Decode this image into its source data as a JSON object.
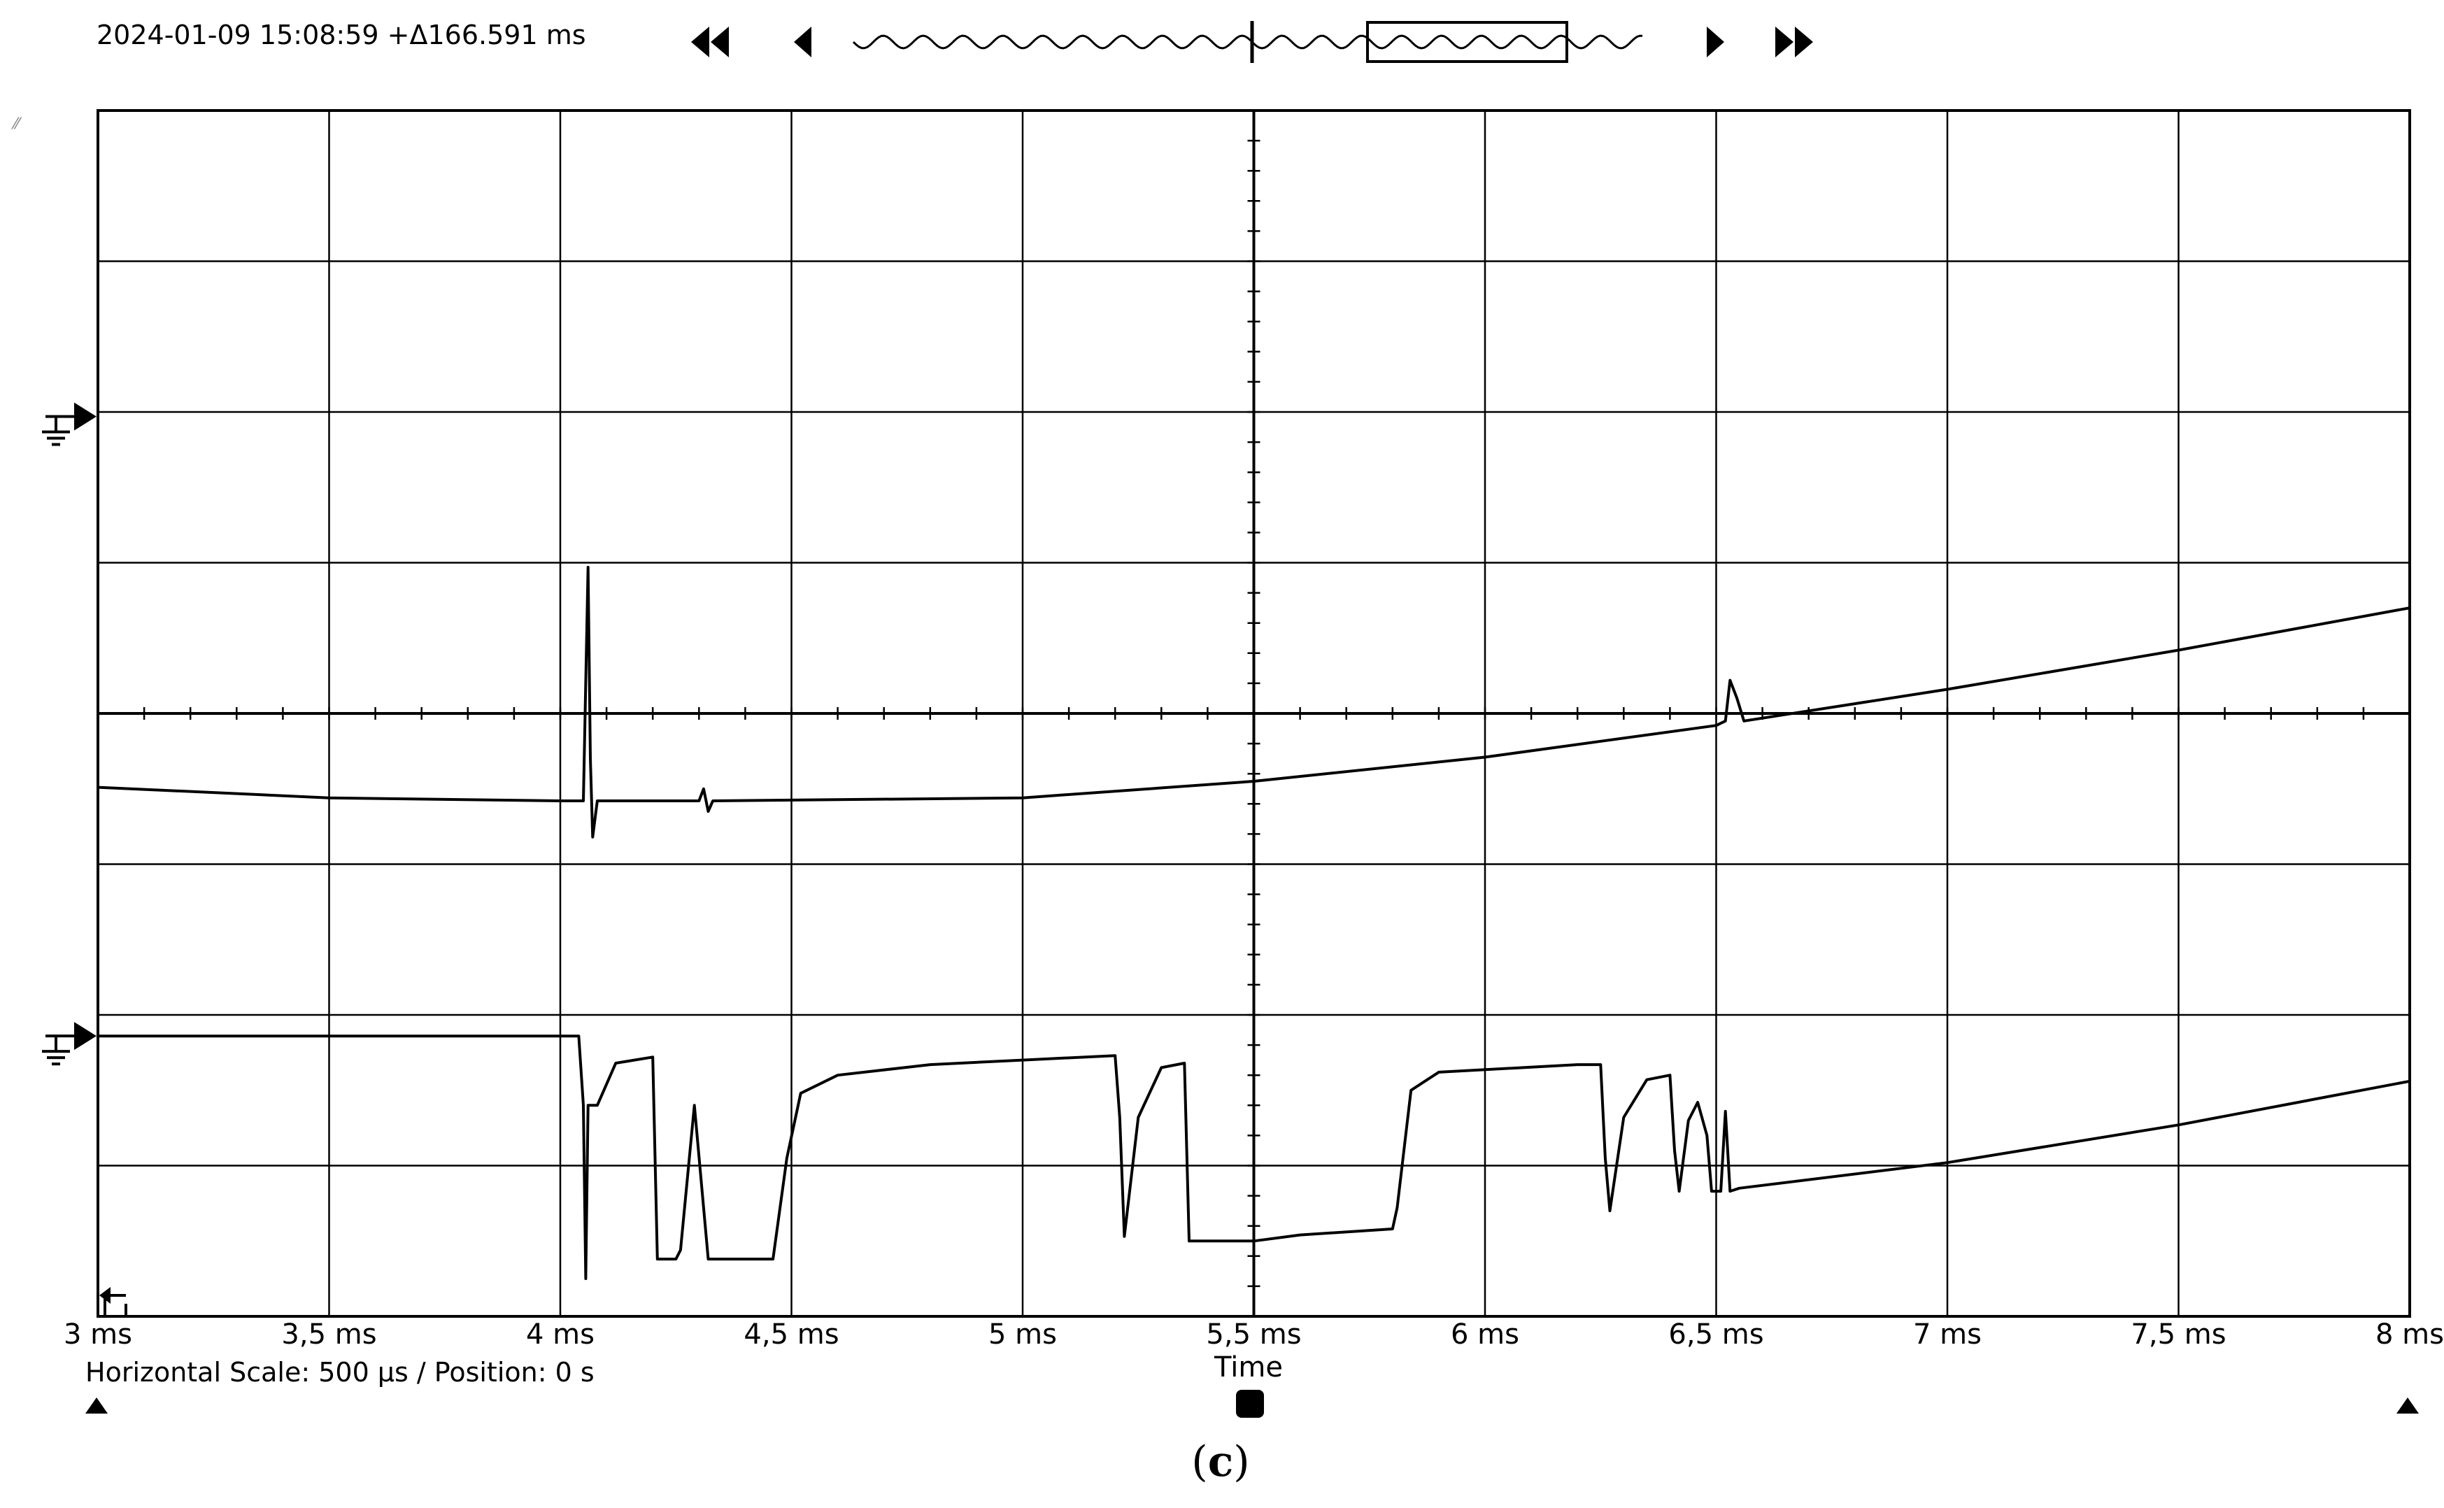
{
  "header": {
    "timestamp": "2024-01-09 15:08:59 +Δ166.591 ms",
    "buttons": [
      {
        "name": "rewind-to-start-button",
        "icon": "double-left-arrow-icon"
      },
      {
        "name": "step-back-button",
        "icon": "left-arrow-icon"
      },
      {
        "name": "step-forward-button",
        "icon": "right-arrow-icon"
      },
      {
        "name": "forward-to-end-button",
        "icon": "double-right-arrow-icon"
      }
    ],
    "overview_icon": "waveform-overview-icon"
  },
  "chart_data": {
    "type": "line",
    "title": "",
    "xlabel": "Time",
    "ylabel": "",
    "grid": true,
    "xlim": [
      3,
      8
    ],
    "x_unit": "ms",
    "x_tick_labels": [
      "3 ms",
      "3,5 ms",
      "4 ms",
      "4,5 ms",
      "5 ms",
      "5,5 ms",
      "6 ms",
      "6,5 ms",
      "7 ms",
      "7,5 ms",
      "8 ms"
    ],
    "ylim": [
      -4,
      4
    ],
    "y_unit": "divisions",
    "series": [
      {
        "channel": 1,
        "ground_ref_div": 1.97,
        "color": "#000000",
        "points": [
          [
            3.0,
            -0.49
          ],
          [
            3.5,
            -0.56
          ],
          [
            4.0,
            -0.58
          ],
          [
            4.05,
            -0.58
          ],
          [
            4.06,
            0.97
          ],
          [
            4.065,
            -0.3
          ],
          [
            4.07,
            -0.82
          ],
          [
            4.08,
            -0.58
          ],
          [
            4.3,
            -0.58
          ],
          [
            4.31,
            -0.5
          ],
          [
            4.32,
            -0.65
          ],
          [
            4.33,
            -0.58
          ],
          [
            5.0,
            -0.56
          ],
          [
            5.5,
            -0.45
          ],
          [
            6.0,
            -0.29
          ],
          [
            6.5,
            -0.08
          ],
          [
            6.52,
            -0.05
          ],
          [
            6.53,
            0.22
          ],
          [
            6.545,
            0.1
          ],
          [
            6.56,
            -0.05
          ],
          [
            7.0,
            0.16
          ],
          [
            7.5,
            0.42
          ],
          [
            8.0,
            0.7
          ]
        ]
      },
      {
        "channel": 2,
        "ground_ref_div": -2.14,
        "color": "#000000",
        "points": [
          [
            3.0,
            -2.14
          ],
          [
            3.5,
            -2.14
          ],
          [
            4.04,
            -2.14
          ],
          [
            4.05,
            -2.6
          ],
          [
            4.055,
            -3.75
          ],
          [
            4.06,
            -2.6
          ],
          [
            4.08,
            -2.6
          ],
          [
            4.12,
            -2.32
          ],
          [
            4.2,
            -2.28
          ],
          [
            4.21,
            -3.62
          ],
          [
            4.25,
            -3.62
          ],
          [
            4.26,
            -3.56
          ],
          [
            4.29,
            -2.6
          ],
          [
            4.32,
            -3.62
          ],
          [
            4.46,
            -3.62
          ],
          [
            4.49,
            -2.95
          ],
          [
            4.52,
            -2.52
          ],
          [
            4.6,
            -2.4
          ],
          [
            4.8,
            -2.33
          ],
          [
            5.0,
            -2.3
          ],
          [
            5.2,
            -2.27
          ],
          [
            5.21,
            -2.68
          ],
          [
            5.22,
            -3.47
          ],
          [
            5.25,
            -2.68
          ],
          [
            5.3,
            -2.35
          ],
          [
            5.35,
            -2.32
          ],
          [
            5.36,
            -3.5
          ],
          [
            5.5,
            -3.5
          ],
          [
            5.6,
            -3.46
          ],
          [
            5.8,
            -3.42
          ],
          [
            5.81,
            -3.28
          ],
          [
            5.84,
            -2.5
          ],
          [
            5.9,
            -2.38
          ],
          [
            6.2,
            -2.33
          ],
          [
            6.25,
            -2.33
          ],
          [
            6.26,
            -2.95
          ],
          [
            6.27,
            -3.3
          ],
          [
            6.3,
            -2.68
          ],
          [
            6.35,
            -2.43
          ],
          [
            6.4,
            -2.4
          ],
          [
            6.41,
            -2.9
          ],
          [
            6.42,
            -3.17
          ],
          [
            6.44,
            -2.7
          ],
          [
            6.46,
            -2.58
          ],
          [
            6.48,
            -2.8
          ],
          [
            6.49,
            -3.17
          ],
          [
            6.51,
            -3.17
          ],
          [
            6.52,
            -2.64
          ],
          [
            6.53,
            -3.17
          ],
          [
            6.55,
            -3.15
          ],
          [
            7.0,
            -2.98
          ],
          [
            7.5,
            -2.73
          ],
          [
            8.0,
            -2.44
          ]
        ]
      }
    ]
  },
  "footer": {
    "scale_info": "Horizontal Scale: 500 µs /  Position: 0 s",
    "time_label": "Time",
    "caption_open": "(",
    "caption_letter": "c",
    "caption_close": ")"
  }
}
